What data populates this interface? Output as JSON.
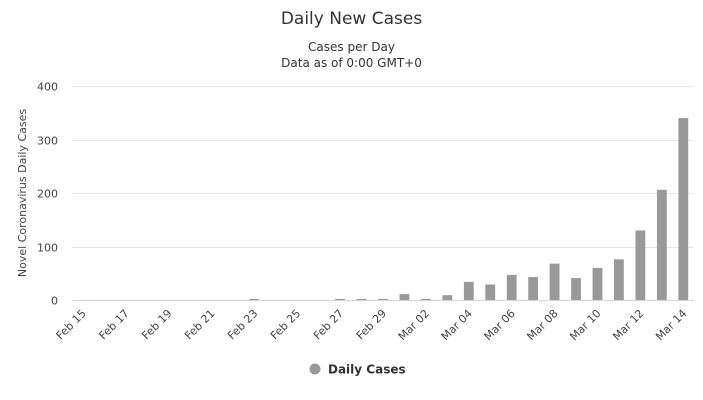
{
  "chart_data": {
    "type": "bar",
    "title": "Daily New Cases",
    "subtitle_lines": [
      "Cases per Day",
      "Data as of 0:00 GMT+0"
    ],
    "ylabel": "Novel Coronavirus Daily Cases",
    "xlabel": "",
    "ylim": [
      0,
      400
    ],
    "yticks": [
      0,
      100,
      200,
      300,
      400
    ],
    "grid": true,
    "legend_position": "bottom",
    "categories": [
      "Feb 15",
      "Feb 16",
      "Feb 17",
      "Feb 18",
      "Feb 19",
      "Feb 20",
      "Feb 21",
      "Feb 22",
      "Feb 23",
      "Feb 24",
      "Feb 25",
      "Feb 26",
      "Feb 27",
      "Feb 28",
      "Feb 29",
      "Mar 01",
      "Mar 02",
      "Mar 03",
      "Mar 04",
      "Mar 05",
      "Mar 06",
      "Mar 07",
      "Mar 08",
      "Mar 09",
      "Mar 10",
      "Mar 11",
      "Mar 12",
      "Mar 13",
      "Mar 14"
    ],
    "tick_labels": [
      "Feb 15",
      "Feb 17",
      "Feb 19",
      "Feb 21",
      "Feb 23",
      "Feb 25",
      "Feb 27",
      "Feb 29",
      "Mar 02",
      "Mar 04",
      "Mar 06",
      "Mar 08",
      "Mar 10",
      "Mar 12",
      "Mar 14"
    ],
    "series": [
      {
        "name": "Daily Cases",
        "color": "#999999",
        "values": [
          0,
          0,
          0,
          0,
          0,
          0,
          0,
          0,
          2,
          0,
          0,
          0,
          2,
          2,
          2,
          11,
          2,
          9,
          34,
          29,
          47,
          43,
          68,
          41,
          60,
          76,
          130,
          206,
          340
        ]
      }
    ]
  }
}
